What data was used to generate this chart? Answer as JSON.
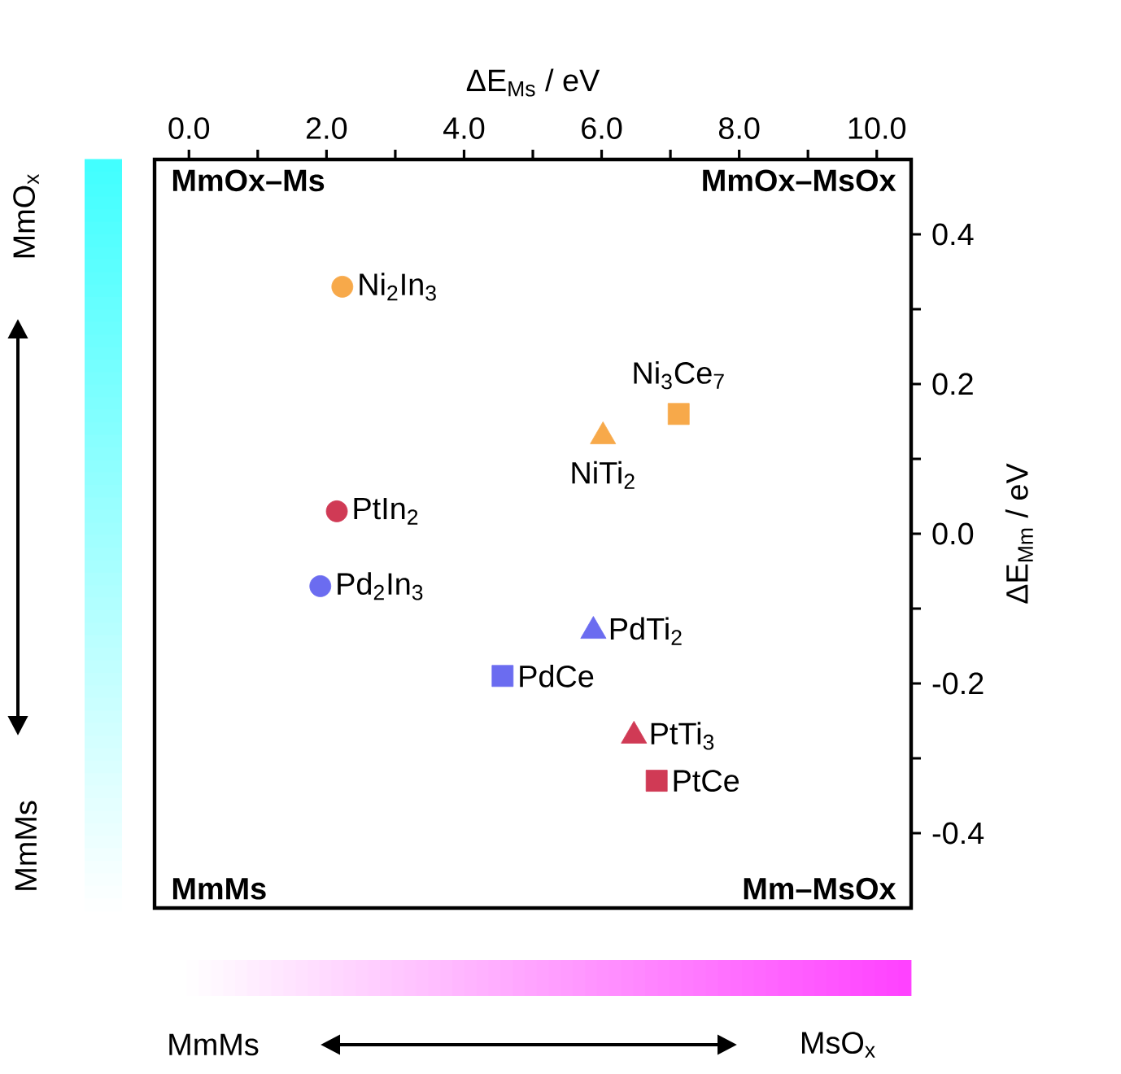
{
  "chart_data": {
    "type": "scatter",
    "xlabel": "ΔE$_{Ms}$ / eV",
    "ylabel": "ΔE$_{Mm}$ / eV",
    "xlim": [
      -0.5,
      10.5
    ],
    "ylim": [
      -0.5,
      0.5
    ],
    "xticks": [
      {
        "value": 0,
        "label": "0.0"
      },
      {
        "value": 1,
        "label": null
      },
      {
        "value": 2,
        "label": "2.0"
      },
      {
        "value": 3,
        "label": null
      },
      {
        "value": 4,
        "label": "4.0"
      },
      {
        "value": 5,
        "label": null
      },
      {
        "value": 6,
        "label": "6.0"
      },
      {
        "value": 7,
        "label": null
      },
      {
        "value": 8,
        "label": "8.0"
      },
      {
        "value": 9,
        "label": null
      },
      {
        "value": 10,
        "label": "10.0"
      }
    ],
    "yticks": [
      -0.4,
      {
        "value": -0.3,
        "label": null
      },
      -0.2,
      {
        "value": -0.1,
        "label": null
      },
      {
        "value": 0,
        "label": "0.0"
      },
      {
        "value": 0.1,
        "label": null
      },
      0.2,
      {
        "value": 0.3,
        "label": null
      },
      0.4
    ],
    "series": [
      {
        "name": "Ni$_{2}$In$_{3}$",
        "color": "#f7a94a",
        "marker": "circle",
        "x": [
          2.23
        ],
        "values": [
          0.33
        ]
      },
      {
        "name": "Ni$_{3}$Ce$_{7}$",
        "color": "#f7a94a",
        "marker": "square",
        "x": [
          7.12
        ],
        "values": [
          0.16
        ]
      },
      {
        "name": "NiTi$_{2}$",
        "color": "#f7a94a",
        "marker": "triangle",
        "x": [
          6.02
        ],
        "values": [
          0.13
        ]
      },
      {
        "name": "PtIn$_{2}$",
        "color": "#d03a55",
        "marker": "circle",
        "x": [
          2.15
        ],
        "values": [
          0.03
        ]
      },
      {
        "name": "Pd$_{2}$In$_{3}$",
        "color": "#6b6cf0",
        "marker": "circle",
        "x": [
          1.91
        ],
        "values": [
          -0.07
        ]
      },
      {
        "name": "PdTi$_{2}$",
        "color": "#6b6cf0",
        "marker": "triangle",
        "x": [
          5.88
        ],
        "values": [
          -0.13
        ]
      },
      {
        "name": "PdCe",
        "color": "#6b6cf0",
        "marker": "square",
        "x": [
          4.56
        ],
        "values": [
          -0.19
        ]
      },
      {
        "name": "PtTi$_{3}$",
        "color": "#d03a55",
        "marker": "triangle",
        "x": [
          6.47
        ],
        "values": [
          -0.27
        ]
      },
      {
        "name": "PtCe",
        "color": "#d03a55",
        "marker": "square",
        "x": [
          6.8
        ],
        "values": [
          -0.33
        ]
      }
    ],
    "annotations": [
      "MmOx–Ms",
      "MmOx–MsOx",
      "MmMs",
      "Mm–MsOx",
      "MmO$_{x}$",
      "MmMs",
      "MmMs",
      "MsO$_{x}$"
    ]
  }
}
